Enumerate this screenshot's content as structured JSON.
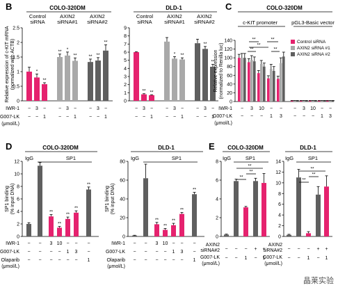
{
  "watermark": "晶莱实验",
  "colors": {
    "pink": "#e5226e",
    "lightgray": "#a9a9a9",
    "darkgray": "#5f5f5f",
    "medgray": "#8a8a8a"
  },
  "chart_data": [
    {
      "id": "B1",
      "letter": "B",
      "type": "bar",
      "title": "COLO-320DM",
      "ylabel": "Relative expression of c-KIT mRNA (normalized with ACTB)",
      "ylim": [
        0,
        2.5
      ],
      "yticks": [
        "0",
        "0.5",
        "1",
        "1.5",
        "2",
        "2.5"
      ],
      "ytick_values": [
        0,
        0.5,
        1,
        1.5,
        2,
        2.5
      ],
      "groups": [
        "Control siRNA",
        "AXIN2 siRNA#1",
        "AXIN2 siRNA#2"
      ],
      "values": [
        1.0,
        0.8,
        0.57,
        1.5,
        1.55,
        1.37,
        1.33,
        1.38,
        1.72
      ],
      "errors": [
        0.15,
        0.12,
        0.05,
        0.1,
        0.12,
        0.1,
        0.1,
        0.1,
        0.2
      ],
      "colors": [
        "pink",
        "pink",
        "pink",
        "lightgray",
        "lightgray",
        "lightgray",
        "darkgray",
        "darkgray",
        "darkgray"
      ],
      "sig": [
        "",
        "*",
        "**",
        "**",
        "*",
        "**",
        "**",
        "**",
        "**"
      ],
      "row1_label": "IWR-1",
      "row1": [
        "−",
        "3",
        "−",
        "−",
        "3",
        "−",
        "−",
        "3",
        "−"
      ],
      "row2_label": "G007-LK",
      "row2": [
        "−",
        "−",
        "1",
        "−",
        "−",
        "1",
        "−",
        "−",
        "1"
      ],
      "unit_label": "(μmol/L)"
    },
    {
      "id": "B2",
      "letter": "",
      "type": "bar",
      "title": "DLD-1",
      "ylim": [
        0,
        9
      ],
      "yticks": [
        "0",
        "1",
        "2",
        "3",
        "4",
        "5",
        "6",
        "7",
        "8",
        "9"
      ],
      "ytick_values": [
        0,
        1,
        2,
        3,
        4,
        5,
        6,
        7,
        8,
        9
      ],
      "groups": [
        "Control siRNA",
        "AXIN2 siRNA#1",
        "AXIN2 siRNA#2"
      ],
      "values": [
        6.0,
        0.8,
        0.7,
        7.3,
        5.2,
        5.1,
        7.1,
        6.4,
        4.2
      ],
      "errors": [
        0.05,
        0.08,
        0.05,
        0.5,
        0.25,
        0.2,
        0.5,
        0.3,
        0.3
      ],
      "colors": [
        "pink",
        "pink",
        "pink",
        "lightgray",
        "lightgray",
        "lightgray",
        "darkgray",
        "darkgray",
        "darkgray"
      ],
      "sig": [
        "",
        "**",
        "**",
        "",
        "*",
        "**",
        "",
        "**",
        "**"
      ],
      "row1": [
        "−",
        "3",
        "−",
        "−",
        "3",
        "−",
        "−",
        "3",
        "−"
      ],
      "row2": [
        "−",
        "−",
        "1",
        "−",
        "−",
        "1",
        "−",
        "−",
        "1"
      ]
    },
    {
      "id": "C",
      "letter": "C",
      "type": "bar",
      "title": "COLO-320DM",
      "ylabel": "Relative expression (normalized to Renilla luc)",
      "ylim": [
        0,
        140
      ],
      "yticks": [
        "0",
        "20",
        "40",
        "60",
        "80",
        "100",
        "120",
        "140"
      ],
      "ytick_values": [
        0,
        20,
        40,
        60,
        80,
        100,
        120,
        140
      ],
      "groups": [
        "c-KIT promoter",
        "pGL3-Basic vector"
      ],
      "legend": [
        "Control siRNA",
        "AXIN2 siRNA #1",
        "AXIN2 siRNA #2"
      ],
      "legend_colors": [
        "pink",
        "lightgray",
        "darkgray"
      ],
      "cond_values": [
        [
          100,
          100,
          100
        ],
        [
          90,
          95,
          92
        ],
        [
          65,
          86,
          80
        ],
        [
          53,
          75,
          70
        ],
        [
          52,
          88,
          103
        ],
        [
          2,
          2,
          2
        ],
        [
          2,
          2,
          2
        ],
        [
          2,
          2,
          2
        ],
        [
          2,
          2,
          2
        ],
        [
          2,
          2,
          2
        ]
      ],
      "cond_errors": [
        [
          8,
          10,
          10
        ],
        [
          8,
          10,
          10
        ],
        [
          6,
          8,
          8
        ],
        [
          6,
          10,
          10
        ],
        [
          6,
          12,
          10
        ],
        [
          0.5,
          0.5,
          0.5
        ],
        [
          0.5,
          0.5,
          0.5
        ],
        [
          0.5,
          0.5,
          0.5
        ],
        [
          0.5,
          0.5,
          0.5
        ],
        [
          0.5,
          0.5,
          0.5
        ]
      ],
      "brackets": [
        "**",
        "**",
        "**",
        "**",
        "**"
      ],
      "row1_label": "IWR-1",
      "row1": [
        "−",
        "3",
        "10",
        "−",
        "−",
        "−",
        "3",
        "10",
        "−",
        "−"
      ],
      "row2_label": "G007-LK",
      "row2": [
        "−",
        "−",
        "−",
        "1",
        "3",
        "−",
        "−",
        "−",
        "1",
        "3"
      ],
      "unit_label": "(μmol/L)"
    },
    {
      "id": "D1",
      "letter": "D",
      "type": "bar",
      "title": "COLO-320DM",
      "ylabel": "SP1 binding (% input DNA)",
      "ylim": [
        0,
        12
      ],
      "yticks": [
        "0",
        "2",
        "4",
        "6",
        "8",
        "10",
        "12"
      ],
      "ytick_values": [
        0,
        2,
        4,
        6,
        8,
        10,
        12
      ],
      "labels_top": [
        "IgG",
        "SP1"
      ],
      "values": [
        2.0,
        11.3,
        3.2,
        1.4,
        2.8,
        3.8,
        7.5
      ],
      "errors": [
        0.2,
        0.5,
        0.3,
        0.2,
        0.3,
        0.3,
        0.4
      ],
      "colors": [
        "darkgray",
        "darkgray",
        "pink",
        "pink",
        "pink",
        "pink",
        "darkgray"
      ],
      "sig": [
        "",
        "",
        "**",
        "**",
        "**",
        "**",
        "**"
      ],
      "row1_label": "IWR-1",
      "row1": [
        "−",
        "−",
        "3",
        "10",
        "−",
        "−",
        "−"
      ],
      "row2_label": "G007-LK",
      "row2": [
        "−",
        "−",
        "−",
        "−",
        "1",
        "3",
        "−"
      ],
      "row3_label": "Olaparib (μmol/L)",
      "row3": [
        "−",
        "−",
        "−",
        "−",
        "−",
        "−",
        "1"
      ]
    },
    {
      "id": "D2",
      "letter": "",
      "type": "bar",
      "title": "DLD-1",
      "ylim": [
        0,
        80
      ],
      "yticks": [
        "0",
        "20",
        "40",
        "60",
        "80"
      ],
      "ytick_values": [
        0,
        20,
        40,
        60,
        80
      ],
      "labels_top": [
        "IgG",
        "SP1"
      ],
      "values": [
        1,
        62,
        13,
        7,
        12,
        24,
        45
      ],
      "errors": [
        0.3,
        15,
        2,
        1.5,
        2,
        1.5,
        2
      ],
      "colors": [
        "darkgray",
        "darkgray",
        "pink",
        "pink",
        "pink",
        "pink",
        "darkgray"
      ],
      "sig": [
        "",
        "",
        "**",
        "**",
        "**",
        "**",
        "**"
      ],
      "row1": [
        "−",
        "−",
        "3",
        "10",
        "−",
        "−",
        "−"
      ],
      "row2": [
        "−",
        "−",
        "−",
        "−",
        "1",
        "3",
        "−"
      ],
      "row3": [
        "−",
        "−",
        "−",
        "−",
        "−",
        "−",
        "1"
      ]
    },
    {
      "id": "E1",
      "letter": "E",
      "type": "bar",
      "title": "COLO-320DM",
      "ylim": [
        0,
        8
      ],
      "yticks": [
        "0",
        "2",
        "4",
        "6",
        "8"
      ],
      "ytick_values": [
        0,
        2,
        4,
        6,
        8
      ],
      "labels_top": [
        "IgG",
        "SP1"
      ],
      "values": [
        0.2,
        5.9,
        3.1,
        5.9,
        5.7
      ],
      "errors": [
        0.05,
        0.2,
        0.1,
        0.3,
        1.0
      ],
      "colors": [
        "darkgray",
        "darkgray",
        "pink",
        "darkgray",
        "pink"
      ],
      "brackets": [
        "**",
        "**",
        "**"
      ],
      "row1_label": "AXIN2 siRNA#2",
      "row1": [
        "−",
        "−",
        "−",
        "+",
        "+"
      ],
      "row2_label": "G007-LK (μmol/L)",
      "row2": [
        "−",
        "−",
        "1",
        "−",
        "1"
      ]
    },
    {
      "id": "E2",
      "letter": "",
      "type": "bar",
      "title": "DLD-1",
      "ylim": [
        0,
        14
      ],
      "yticks": [
        "0",
        "2",
        "4",
        "6",
        "8",
        "10",
        "12",
        "14"
      ],
      "ytick_values": [
        0,
        2,
        4,
        6,
        8,
        10,
        12,
        14
      ],
      "labels_top": [
        "IgG",
        "SP1"
      ],
      "values": [
        0.3,
        11,
        0.6,
        7.8,
        9.3
      ],
      "errors": [
        0.1,
        1.5,
        0.3,
        1.5,
        2
      ],
      "colors": [
        "darkgray",
        "darkgray",
        "pink",
        "darkgray",
        "pink"
      ],
      "brackets": [
        "**",
        "**",
        "**"
      ],
      "row1_label": "AXIN2 siRNA#2",
      "row1": [
        "−",
        "−",
        "−",
        "+",
        "+"
      ],
      "row2_label": "G007-LK (μmol/L)",
      "row2": [
        "−",
        "−",
        "1",
        "−",
        "1"
      ]
    }
  ]
}
